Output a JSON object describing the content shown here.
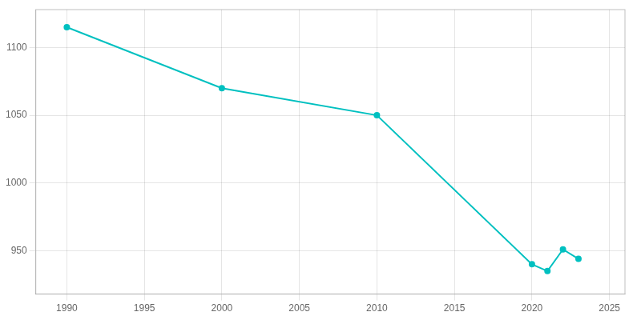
{
  "chart_data": {
    "type": "line",
    "x": [
      1990,
      2000,
      2010,
      2020,
      2021,
      2022,
      2023
    ],
    "values": [
      1115,
      1070,
      1050,
      940,
      935,
      951,
      944
    ],
    "color": "#00C0C0",
    "marker": "circle",
    "xlim": [
      1988,
      2026
    ],
    "ylim": [
      918,
      1128
    ],
    "xticks": [
      1990,
      1995,
      2000,
      2005,
      2010,
      2015,
      2020,
      2025
    ],
    "yticks": [
      950,
      1000,
      1050,
      1100
    ],
    "grid": true
  }
}
